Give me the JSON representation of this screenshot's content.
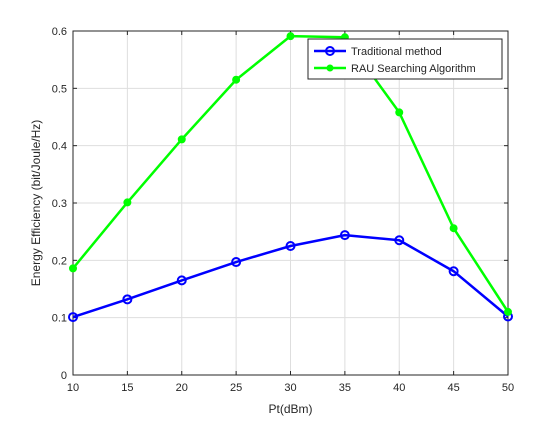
{
  "chart_data": {
    "type": "line",
    "title": "",
    "xlabel": "Pt(dBm)",
    "ylabel": "Energy  Efficiency (bit/Joule/Hz)",
    "xlim": [
      10,
      50
    ],
    "ylim": [
      0,
      0.6
    ],
    "xticks": [
      10,
      15,
      20,
      25,
      30,
      35,
      40,
      45,
      50
    ],
    "yticks": [
      0,
      0.1,
      0.2,
      0.3,
      0.4,
      0.5,
      0.6
    ],
    "xtick_labels": [
      "10",
      "15",
      "20",
      "25",
      "30",
      "35",
      "40",
      "45",
      "50"
    ],
    "ytick_labels": [
      "0",
      "0.1",
      "0.2",
      "0.3",
      "0.4",
      "0.5",
      "0.6"
    ],
    "grid": true,
    "legend_position": "top-right",
    "x": [
      10,
      15,
      20,
      25,
      30,
      35,
      40,
      45,
      50
    ],
    "series": [
      {
        "name": "Traditional method",
        "color": "#0000ff",
        "marker": "circle",
        "values": [
          0.101,
          0.132,
          0.165,
          0.197,
          0.225,
          0.244,
          0.235,
          0.181,
          0.102
        ]
      },
      {
        "name": "RAU Searching Algorithm",
        "color": "#00ff00",
        "marker": "dot",
        "values": [
          0.186,
          0.301,
          0.411,
          0.515,
          0.591,
          0.589,
          0.458,
          0.256,
          0.11
        ]
      }
    ]
  }
}
